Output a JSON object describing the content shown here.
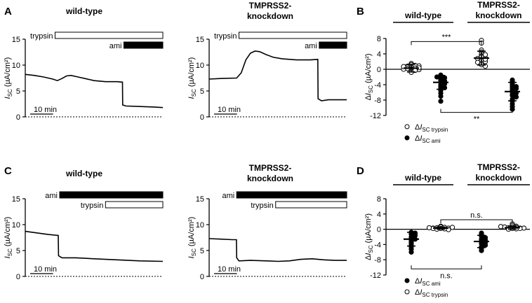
{
  "panels": {
    "A": {
      "label": "A"
    },
    "B": {
      "label": "B"
    },
    "C": {
      "label": "C"
    },
    "D": {
      "label": "D"
    }
  },
  "chart_data": [
    {
      "panel": "A",
      "type": "line",
      "title": "wild-type",
      "ylabel": "I_SC (µA/cm²)",
      "ylim": [
        0,
        15
      ],
      "yticks": [
        0,
        5,
        10,
        15
      ],
      "scalebar": "10 min",
      "xlim": [
        0,
        60
      ],
      "bars": [
        {
          "label": "trypsin",
          "fill": "white",
          "range": [
            13,
            60
          ]
        },
        {
          "label": "ami",
          "fill": "black",
          "range": [
            43,
            60
          ]
        }
      ],
      "trace": [
        [
          0,
          8.2
        ],
        [
          4,
          8.0
        ],
        [
          8,
          7.7
        ],
        [
          12,
          7.3
        ],
        [
          14,
          7.0
        ],
        [
          16,
          7.4
        ],
        [
          18,
          7.9
        ],
        [
          20,
          8.0
        ],
        [
          23,
          7.7
        ],
        [
          26,
          7.4
        ],
        [
          30,
          7.0
        ],
        [
          35,
          6.8
        ],
        [
          40,
          6.8
        ],
        [
          42.4,
          6.7
        ],
        [
          42.5,
          2.3
        ],
        [
          44,
          2.1
        ],
        [
          50,
          2.0
        ],
        [
          56,
          1.9
        ],
        [
          60,
          1.8
        ]
      ]
    },
    {
      "panel": "A",
      "type": "line",
      "title": "TMPRSS2-\nknockdown",
      "ylabel": "I_SC (µA/cm²)",
      "ylim": [
        0,
        15
      ],
      "yticks": [
        0,
        5,
        10,
        15
      ],
      "scalebar": "10 min",
      "xlim": [
        0,
        60
      ],
      "bars": [
        {
          "label": "trypsin",
          "fill": "white",
          "range": [
            13,
            60
          ]
        },
        {
          "label": "ami",
          "fill": "black",
          "range": [
            48,
            60
          ]
        }
      ],
      "trace": [
        [
          0,
          7.3
        ],
        [
          5,
          7.4
        ],
        [
          12,
          7.5
        ],
        [
          14,
          8.5
        ],
        [
          16,
          11.0
        ],
        [
          18,
          12.3
        ],
        [
          20,
          12.7
        ],
        [
          22,
          12.6
        ],
        [
          25,
          12.0
        ],
        [
          28,
          11.5
        ],
        [
          32,
          11.2
        ],
        [
          38,
          11.0
        ],
        [
          44,
          11.0
        ],
        [
          47.4,
          11.1
        ],
        [
          47.5,
          3.5
        ],
        [
          49,
          3.1
        ],
        [
          52,
          3.3
        ],
        [
          56,
          3.3
        ],
        [
          60,
          3.3
        ]
      ]
    },
    {
      "panel": "B",
      "type": "scatter",
      "ylabel": "ΔI_SC (µA/cm²)",
      "ylim": [
        -12,
        8
      ],
      "yticks": [
        8,
        4,
        0,
        -4,
        -8,
        -12
      ],
      "groups": [
        {
          "name": "wild-type",
          "series": [
            {
              "name": "ΔI_SC trypsin",
              "marker": "open",
              "mean": 0.3,
              "sd": 1.0,
              "values": [
                1.5,
                1.2,
                1.0,
                0.8,
                0.5,
                0.3,
                0.1,
                -0.2,
                -0.5,
                -0.8,
                0.9,
                0.6,
                0.2,
                -0.1,
                0.4,
                0.0,
                -0.3,
                0.7
              ]
            },
            {
              "name": "ΔI_SC ami",
              "marker": "filled",
              "mean": -3.4,
              "sd": 1.8,
              "values": [
                -1.5,
                -1.8,
                -2.2,
                -2.5,
                -2.8,
                -3.0,
                -3.3,
                -3.6,
                -4.0,
                -4.5,
                -5.0,
                -5.5,
                -6.2,
                -7.0,
                -8.3,
                -2.0,
                -3.8,
                -4.8
              ]
            }
          ]
        },
        {
          "name": "TMPRSS2-knockdown",
          "series": [
            {
              "name": "ΔI_SC trypsin",
              "marker": "open",
              "mean": 2.9,
              "sd": 1.8,
              "values": [
                7.5,
                6.8,
                5.0,
                4.5,
                4.0,
                3.5,
                3.2,
                3.0,
                2.8,
                2.5,
                2.2,
                2.0,
                1.6,
                1.2,
                0.8,
                3.8,
                2.6,
                1.8
              ]
            },
            {
              "name": "ΔI_SC ami",
              "marker": "filled",
              "mean": -5.8,
              "sd": 2.4,
              "values": [
                -2.8,
                -3.3,
                -3.8,
                -4.3,
                -4.8,
                -5.3,
                -5.8,
                -6.2,
                -6.8,
                -7.2,
                -7.8,
                -8.3,
                -9.0,
                -9.7,
                -10.4,
                -4.5,
                -6.5,
                -5.0
              ]
            }
          ]
        }
      ],
      "annotations": [
        {
          "text": "***",
          "between": "trypsin groups"
        },
        {
          "text": "**",
          "between": "ami groups"
        }
      ],
      "legend": [
        {
          "marker": "open",
          "label": "ΔI_SC trypsin"
        },
        {
          "marker": "filled",
          "label": "ΔI_SC ami"
        }
      ]
    },
    {
      "panel": "C",
      "type": "line",
      "title": "wild-type",
      "ylabel": "I_SC (µA/cm²)",
      "ylim": [
        0,
        15
      ],
      "yticks": [
        0,
        5,
        10,
        15
      ],
      "scalebar": "10 min",
      "xlim": [
        0,
        60
      ],
      "bars": [
        {
          "label": "ami",
          "fill": "black",
          "range": [
            15,
            60
          ]
        },
        {
          "label": "trypsin",
          "fill": "white",
          "range": [
            35,
            60
          ]
        }
      ],
      "trace": [
        [
          0,
          8.7
        ],
        [
          5,
          8.4
        ],
        [
          10,
          8.1
        ],
        [
          14.4,
          7.9
        ],
        [
          14.5,
          4.0
        ],
        [
          16,
          3.6
        ],
        [
          22,
          3.6
        ],
        [
          30,
          3.4
        ],
        [
          40,
          3.2
        ],
        [
          50,
          3.0
        ],
        [
          60,
          2.9
        ]
      ]
    },
    {
      "panel": "C",
      "type": "line",
      "title": "TMPRSS2-\nknockdown",
      "ylabel": "I_SC (µA/cm²)",
      "ylim": [
        0,
        15
      ],
      "yticks": [
        0,
        5,
        10,
        15
      ],
      "scalebar": "10 min",
      "xlim": [
        0,
        60
      ],
      "bars": [
        {
          "label": "ami",
          "fill": "black",
          "range": [
            12,
            60
          ]
        },
        {
          "label": "trypsin",
          "fill": "white",
          "range": [
            29,
            60
          ]
        }
      ],
      "trace": [
        [
          0,
          7.3
        ],
        [
          5,
          7.2
        ],
        [
          10,
          7.1
        ],
        [
          11.9,
          7.1
        ],
        [
          12,
          3.6
        ],
        [
          13,
          3.0
        ],
        [
          18,
          3.1
        ],
        [
          25,
          3.0
        ],
        [
          30,
          2.9
        ],
        [
          35,
          3.0
        ],
        [
          40,
          3.3
        ],
        [
          45,
          3.4
        ],
        [
          50,
          3.2
        ],
        [
          55,
          3.1
        ],
        [
          60,
          3.1
        ]
      ]
    },
    {
      "panel": "D",
      "type": "scatter",
      "ylabel": "ΔI_SC (µA/cm²)",
      "ylim": [
        -12,
        8
      ],
      "yticks": [
        8,
        4,
        0,
        -4,
        -8,
        -12
      ],
      "groups": [
        {
          "name": "wild-type",
          "series": [
            {
              "name": "ΔI_SC ami",
              "marker": "filled",
              "mean": -2.6,
              "sd": 1.8,
              "values": [
                -0.8,
                -1.0,
                -1.3,
                -1.6,
                -2.0,
                -2.3,
                -2.6,
                -3.0,
                -3.5,
                -4.0,
                -4.6,
                -5.2,
                -6.0
              ]
            },
            {
              "name": "ΔI_SC trypsin",
              "marker": "open",
              "mean": 0.3,
              "sd": 0.3,
              "values": [
                0.8,
                0.6,
                0.5,
                0.4,
                0.3,
                0.2,
                0.1,
                0.0,
                -0.1,
                0.3,
                0.5,
                0.2,
                0.4
              ]
            }
          ]
        },
        {
          "name": "TMPRSS2-knockdown",
          "series": [
            {
              "name": "ΔI_SC ami",
              "marker": "filled",
              "mean": -3.2,
              "sd": 1.6,
              "values": [
                -1.0,
                -1.4,
                -1.8,
                -2.2,
                -2.6,
                -3.0,
                -3.4,
                -3.8,
                -4.2,
                -4.6,
                -5.0,
                -5.6,
                -2.8,
                -3.6
              ]
            },
            {
              "name": "ΔI_SC trypsin",
              "marker": "open",
              "mean": 0.4,
              "sd": 0.4,
              "values": [
                1.4,
                1.0,
                0.8,
                0.6,
                0.5,
                0.4,
                0.3,
                0.2,
                0.1,
                0.0,
                0.6,
                0.3,
                0.7,
                0.2
              ]
            }
          ]
        }
      ],
      "annotations": [
        {
          "text": "n.s.",
          "between": "trypsin groups"
        },
        {
          "text": "n.s.",
          "between": "ami groups"
        }
      ],
      "legend": [
        {
          "marker": "filled",
          "label": "ΔI_SC ami"
        },
        {
          "marker": "open",
          "label": "ΔI_SC trypsin"
        }
      ]
    }
  ]
}
